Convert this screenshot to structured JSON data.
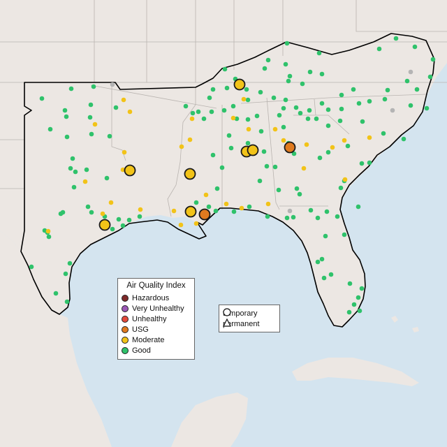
{
  "map": {
    "basemap": "terrain",
    "water_color": "#d4e4ef",
    "land_color": "#ece7e3",
    "region_outline_color": "#000000"
  },
  "aqi_legend": {
    "title": "Air Quality Index",
    "items": [
      {
        "label": "Hazardous",
        "color": "#7e2a2a"
      },
      {
        "label": "Very Unhealthy",
        "color": "#9b59b6"
      },
      {
        "label": "Unhealthy",
        "color": "#e34a3b"
      },
      {
        "label": "USG",
        "color": "#e07a1f"
      },
      {
        "label": "Moderate",
        "color": "#f2c318"
      },
      {
        "label": "Good",
        "color": "#2fc26b"
      }
    ]
  },
  "type_legend": {
    "items": [
      {
        "label": "temporary",
        "icon": "circle-icon"
      },
      {
        "label": "permanent",
        "icon": "triangle-icon"
      }
    ]
  },
  "colors": {
    "good": "#2fc26b",
    "moderate": "#f2c318",
    "usg": "#e07a1f",
    "nodata": "#b4b4b4"
  }
}
